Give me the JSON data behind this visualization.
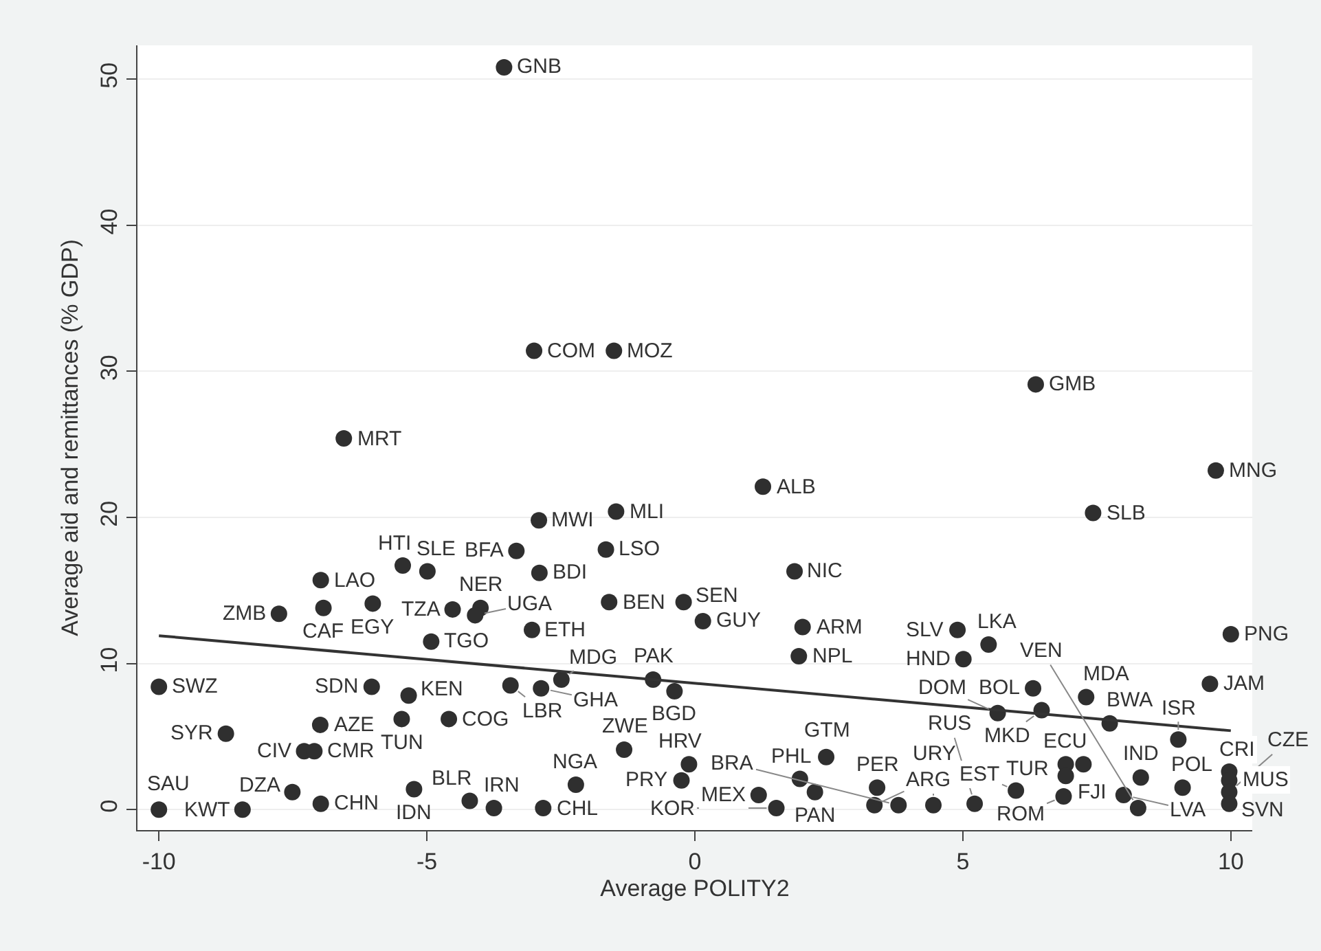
{
  "chart_data": {
    "type": "scatter",
    "xlabel": "Average POLITY2",
    "ylabel": "Average aid and remittances (% GDP)",
    "xlim": [
      -10.4,
      10.4
    ],
    "ylim": [
      -1.4,
      52.3
    ],
    "xticks": [
      -10,
      -5,
      0,
      5,
      10
    ],
    "yticks": [
      0,
      10,
      20,
      30,
      40,
      50
    ],
    "grid": "y",
    "marker": "circle",
    "series": [
      {
        "color": "#2f2f2f",
        "x": [
          -3.56,
          -3.0,
          -1.51,
          -6.55,
          -2.91,
          -1.47,
          6.36,
          9.72,
          1.27,
          7.43,
          -6.98,
          -5.45,
          -4.99,
          -3.33,
          -1.66,
          -2.9,
          1.86,
          -7.76,
          -6.93,
          -6.01,
          -4.52,
          -4.0,
          -4.1,
          -4.92,
          -3.04,
          -1.6,
          -0.21,
          0.15,
          2.01,
          1.94,
          4.9,
          5.48,
          5.01,
          10.0,
          9.61,
          6.31,
          7.3,
          5.65,
          6.47,
          7.74,
          9.02,
          -10.0,
          -6.03,
          -5.34,
          -3.44,
          -2.87,
          -2.49,
          -0.78,
          -0.38,
          -5.47,
          -4.59,
          -6.99,
          -8.75,
          -7.29,
          -7.1,
          -7.51,
          -6.98,
          -10.0,
          -8.44,
          -5.24,
          -4.2,
          -3.75,
          -2.83,
          -2.22,
          -1.32,
          -0.11,
          -0.25,
          2.45,
          1.96,
          1.19,
          2.24,
          1.52,
          3.4,
          3.35,
          3.8,
          4.45,
          5.22,
          5.99,
          6.92,
          7.25,
          6.92,
          6.88,
          8.32,
          8.0,
          9.1,
          8.27,
          9.97,
          9.97,
          9.97,
          9.97
        ],
        "values": [
          50.8,
          31.4,
          31.4,
          25.4,
          19.8,
          20.4,
          29.1,
          23.2,
          22.1,
          20.3,
          15.7,
          16.7,
          16.3,
          17.7,
          17.8,
          16.2,
          16.3,
          13.4,
          13.8,
          14.1,
          13.7,
          13.8,
          13.3,
          11.5,
          12.3,
          14.2,
          14.2,
          12.9,
          12.5,
          10.5,
          12.3,
          11.3,
          10.3,
          12.0,
          8.6,
          8.3,
          7.7,
          6.6,
          6.8,
          5.9,
          4.8,
          8.4,
          8.4,
          7.8,
          8.5,
          8.3,
          8.9,
          8.9,
          8.1,
          6.2,
          6.2,
          5.8,
          5.2,
          4.0,
          4.0,
          1.2,
          0.4,
          0.0,
          0.0,
          1.4,
          0.6,
          0.1,
          0.1,
          1.7,
          4.1,
          3.1,
          2.0,
          3.6,
          2.1,
          1.0,
          1.2,
          0.1,
          1.5,
          0.3,
          0.3,
          0.3,
          0.4,
          1.3,
          3.1,
          3.1,
          2.3,
          0.9,
          2.2,
          1.0,
          1.5,
          0.1,
          2.6,
          2.0,
          1.2,
          0.4
        ]
      },
      {
        "type": "line",
        "color": "#333333",
        "marker": "none",
        "x": [
          -10,
          10
        ],
        "values": [
          11.9,
          5.4
        ]
      }
    ],
    "annotations": [
      {
        "text": "GNB",
        "x": -3.56,
        "y": 50.8
      },
      {
        "text": "COM",
        "x": -3.0,
        "y": 31.4
      },
      {
        "text": "MOZ",
        "x": -1.51,
        "y": 31.4
      },
      {
        "text": "MRT",
        "x": -6.55,
        "y": 25.4
      },
      {
        "text": "MWI",
        "x": -2.91,
        "y": 19.8
      },
      {
        "text": "MLI",
        "x": -1.47,
        "y": 20.4
      },
      {
        "text": "GMB",
        "x": 6.36,
        "y": 29.1
      },
      {
        "text": "MNG",
        "x": 9.72,
        "y": 23.2
      },
      {
        "text": "ALB",
        "x": 1.27,
        "y": 22.1
      },
      {
        "text": "SLB",
        "x": 7.43,
        "y": 20.3
      },
      {
        "text": "LAO",
        "x": -6.98,
        "y": 15.7
      },
      {
        "text": "HTI",
        "x": -5.45,
        "y": 16.7
      },
      {
        "text": "SLE",
        "x": -4.99,
        "y": 16.3
      },
      {
        "text": "BFA",
        "x": -3.33,
        "y": 17.7
      },
      {
        "text": "LSO",
        "x": -1.66,
        "y": 17.8
      },
      {
        "text": "BDI",
        "x": -2.9,
        "y": 16.2
      },
      {
        "text": "NIC",
        "x": 1.86,
        "y": 16.3
      },
      {
        "text": "ZMB",
        "x": -7.76,
        "y": 13.4
      },
      {
        "text": "CAF",
        "x": -6.93,
        "y": 13.8
      },
      {
        "text": "EGY",
        "x": -6.01,
        "y": 14.1
      },
      {
        "text": "TZA",
        "x": -4.52,
        "y": 13.7
      },
      {
        "text": "NER",
        "x": -4.0,
        "y": 13.8
      },
      {
        "text": "UGA",
        "x": -4.1,
        "y": 13.3
      },
      {
        "text": "TGO",
        "x": -4.92,
        "y": 11.5
      },
      {
        "text": "ETH",
        "x": -3.04,
        "y": 12.3
      },
      {
        "text": "BEN",
        "x": -1.6,
        "y": 14.2
      },
      {
        "text": "SEN",
        "x": -0.21,
        "y": 14.2
      },
      {
        "text": "GUY",
        "x": 0.15,
        "y": 12.9
      },
      {
        "text": "ARM",
        "x": 2.01,
        "y": 12.5
      },
      {
        "text": "NPL",
        "x": 1.94,
        "y": 10.5
      },
      {
        "text": "SLV",
        "x": 4.9,
        "y": 12.3
      },
      {
        "text": "LKA",
        "x": 5.48,
        "y": 11.3
      },
      {
        "text": "HND",
        "x": 5.01,
        "y": 10.3
      },
      {
        "text": "PNG",
        "x": 10.0,
        "y": 12.0
      },
      {
        "text": "JAM",
        "x": 9.61,
        "y": 8.6
      },
      {
        "text": "BOL",
        "x": 6.31,
        "y": 8.3
      },
      {
        "text": "MDA",
        "x": 7.3,
        "y": 7.7
      },
      {
        "text": "DOM",
        "x": 5.65,
        "y": 6.6
      },
      {
        "text": "MKD",
        "x": 6.47,
        "y": 6.8
      },
      {
        "text": "BWA",
        "x": 7.74,
        "y": 5.9
      },
      {
        "text": "ISR",
        "x": 9.02,
        "y": 4.8
      },
      {
        "text": "SWZ",
        "x": -10.0,
        "y": 8.4
      },
      {
        "text": "SDN",
        "x": -6.03,
        "y": 8.4
      },
      {
        "text": "KEN",
        "x": -5.34,
        "y": 7.8
      },
      {
        "text": "LBR",
        "x": -3.44,
        "y": 8.5
      },
      {
        "text": "GHA",
        "x": -2.87,
        "y": 8.3
      },
      {
        "text": "MDG",
        "x": -2.49,
        "y": 8.9
      },
      {
        "text": "PAK",
        "x": -0.78,
        "y": 8.9
      },
      {
        "text": "BGD",
        "x": -0.38,
        "y": 8.1
      },
      {
        "text": "TUN",
        "x": -5.47,
        "y": 6.2
      },
      {
        "text": "COG",
        "x": -4.59,
        "y": 6.2
      },
      {
        "text": "AZE",
        "x": -6.99,
        "y": 5.8
      },
      {
        "text": "SYR",
        "x": -8.75,
        "y": 5.2
      },
      {
        "text": "CIV",
        "x": -7.29,
        "y": 4.0
      },
      {
        "text": "CMR",
        "x": -7.1,
        "y": 4.0
      },
      {
        "text": "DZA",
        "x": -7.51,
        "y": 1.2
      },
      {
        "text": "CHN",
        "x": -6.98,
        "y": 0.4
      },
      {
        "text": "SAU",
        "x": -10.0,
        "y": 0.0
      },
      {
        "text": "KWT",
        "x": -8.44,
        "y": 0.0
      },
      {
        "text": "IDN",
        "x": -5.24,
        "y": 1.4
      },
      {
        "text": "BLR",
        "x": -4.2,
        "y": 0.6
      },
      {
        "text": "IRN",
        "x": -3.75,
        "y": 0.1
      },
      {
        "text": "CHL",
        "x": -2.83,
        "y": 0.1
      },
      {
        "text": "NGA",
        "x": -2.22,
        "y": 1.7
      },
      {
        "text": "ZWE",
        "x": -1.32,
        "y": 4.1
      },
      {
        "text": "HRV",
        "x": -0.11,
        "y": 3.1
      },
      {
        "text": "PRY",
        "x": -0.25,
        "y": 2.0
      },
      {
        "text": "GTM",
        "x": 2.45,
        "y": 3.6
      },
      {
        "text": "PHL",
        "x": 1.96,
        "y": 2.1
      },
      {
        "text": "MEX",
        "x": 1.19,
        "y": 1.0
      },
      {
        "text": "PAN",
        "x": 2.24,
        "y": 1.2
      },
      {
        "text": "KOR",
        "x": 1.52,
        "y": 0.1
      },
      {
        "text": "PER",
        "x": 3.4,
        "y": 1.5
      },
      {
        "text": "ARG",
        "x": 3.35,
        "y": 0.3
      },
      {
        "text": "BRA",
        "x": 3.8,
        "y": 0.3
      },
      {
        "text": "URY",
        "x": 4.45,
        "y": 0.3
      },
      {
        "text": "RUS",
        "x": 5.22,
        "y": 0.4
      },
      {
        "text": "EST",
        "x": 5.99,
        "y": 1.3
      },
      {
        "text": "ECU",
        "x": 6.92,
        "y": 3.1
      },
      {
        "text": "FJI",
        "x": 7.25,
        "y": 3.1
      },
      {
        "text": "TUR",
        "x": 6.92,
        "y": 2.3
      },
      {
        "text": "ROM",
        "x": 6.88,
        "y": 0.9
      },
      {
        "text": "IND",
        "x": 8.32,
        "y": 2.2
      },
      {
        "text": "LVA",
        "x": 8.0,
        "y": 1.0
      },
      {
        "text": "POL",
        "x": 9.1,
        "y": 1.5
      },
      {
        "text": "VEN",
        "x": 8.27,
        "y": 0.1
      },
      {
        "text": "CRI",
        "x": 9.97,
        "y": 2.6
      },
      {
        "text": "MUS",
        "x": 9.97,
        "y": 2.0
      },
      {
        "text": "CZE",
        "x": 9.97,
        "y": 1.2
      },
      {
        "text": "SVN",
        "x": 9.97,
        "y": 0.4
      }
    ]
  }
}
